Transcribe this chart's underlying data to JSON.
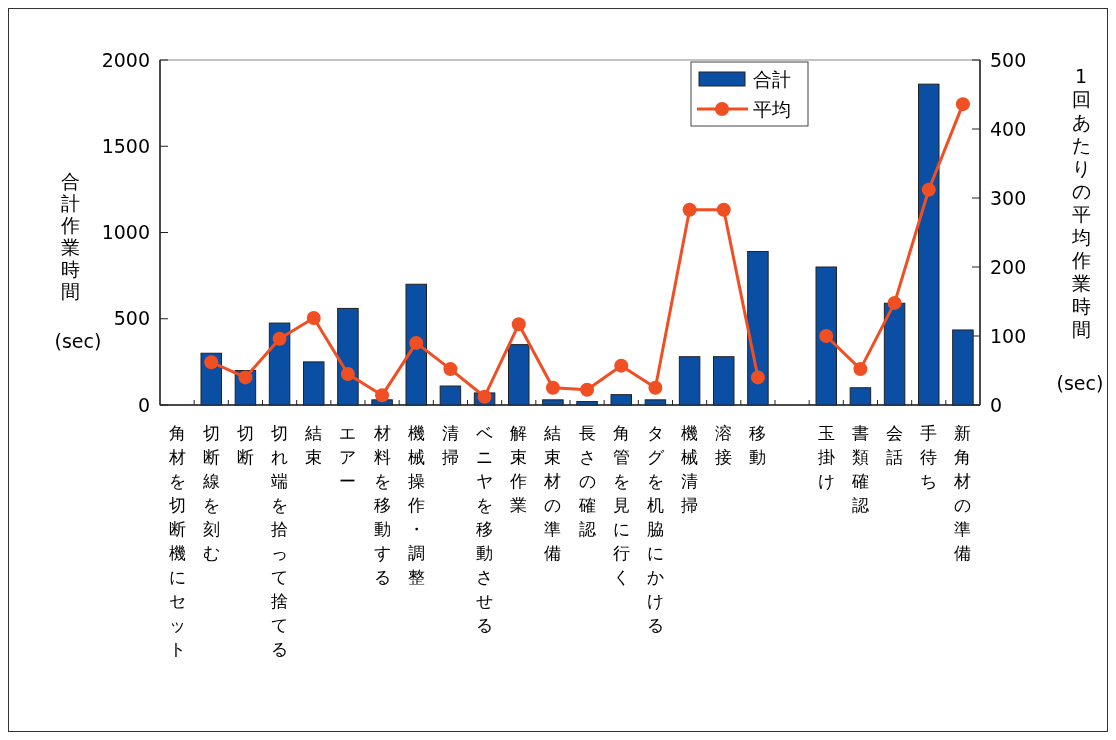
{
  "chart_data": {
    "type": "bar",
    "categories": [
      "角材を切断機にセット",
      "切断線を刻む",
      "切断",
      "切れ端を拾って捨てる",
      "結束",
      "エアー",
      "材料を移動する",
      "機械操作・調整",
      "清掃",
      "ベニヤを移動させる",
      "解束作業",
      "結束材の準備",
      "長さの確認",
      "角管を見に行く",
      "タグを机脇にかける",
      "機械清掃",
      "溶接",
      "移動",
      null,
      "玉掛け",
      "書類確認",
      "会話",
      "手待ち",
      "新角材の準備"
    ],
    "ylabel": "合計作業時間(sec)",
    "y2label": "1回あたりの平均作業時間(sec)",
    "ylim": [
      0,
      2000
    ],
    "yticks": [
      0,
      500,
      1000,
      1500,
      2000
    ],
    "y2lim": [
      0,
      500
    ],
    "y2ticks": [
      0,
      100,
      200,
      300,
      400,
      500
    ],
    "legend": "top",
    "grid": false,
    "series": [
      {
        "name": "合計",
        "color": "#0a4fa3",
        "values": [
          null,
          300,
          200,
          475,
          250,
          560,
          30,
          700,
          110,
          70,
          350,
          30,
          20,
          60,
          30,
          280,
          280,
          890,
          null,
          800,
          100,
          590,
          1860,
          435
        ]
      },
      {
        "name": "平均",
        "type": "line",
        "axis": "y2",
        "color": "#f04e23",
        "marker": "circle",
        "values": [
          null,
          62,
          40,
          96,
          126,
          45,
          14,
          90,
          52,
          12,
          117,
          25,
          22,
          57,
          25,
          283,
          283,
          40,
          null,
          100,
          52,
          148,
          312,
          436
        ]
      }
    ]
  }
}
